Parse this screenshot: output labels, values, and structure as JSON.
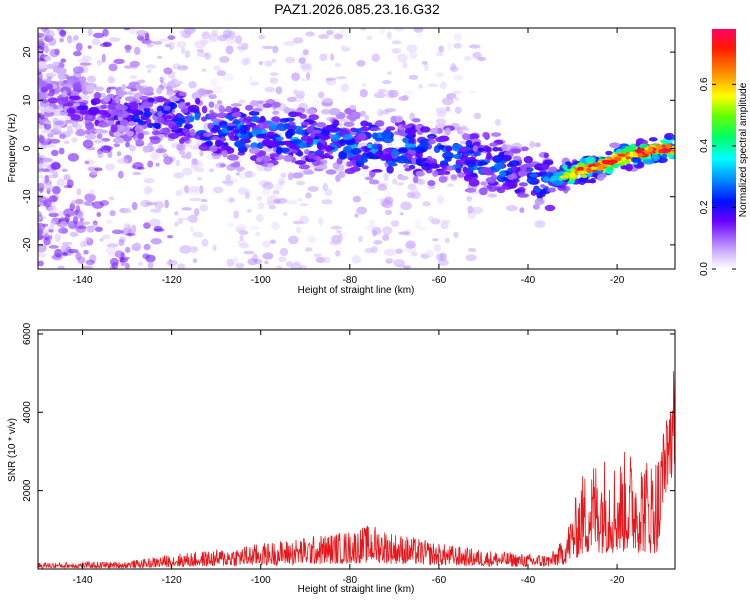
{
  "title": "PAZ1.2026.085.23.16.G32",
  "chart_data": [
    {
      "type": "heatmap",
      "xlabel": "Height of straight line (km)",
      "ylabel": "Frequency (Hz)",
      "xlim": [
        -150,
        -7
      ],
      "ylim": [
        -25,
        25
      ],
      "xticks": [
        -140,
        -120,
        -100,
        -80,
        -60,
        -40,
        -20
      ],
      "yticks": [
        -20,
        -10,
        0,
        10,
        20
      ],
      "colorbar": {
        "label": "Normalized spectral amplitude",
        "range": [
          0,
          0.78
        ],
        "ticks": [
          0.0,
          0.2,
          0.4,
          0.6
        ]
      },
      "ridge": {
        "description": "frequency of peak amplitude vs height",
        "x": [
          -150,
          -140,
          -130,
          -120,
          -110,
          -100,
          -90,
          -80,
          -70,
          -60,
          -50,
          -40,
          -35,
          -30,
          -25,
          -20,
          -15,
          -10,
          -7
        ],
        "y": [
          12,
          9,
          7,
          7,
          4,
          3,
          2,
          1,
          0,
          -1,
          -3,
          -6,
          -7,
          -5,
          -4,
          -2,
          -1,
          0,
          0
        ],
        "peak_amplitude": [
          0.12,
          0.18,
          0.2,
          0.25,
          0.3,
          0.32,
          0.3,
          0.33,
          0.32,
          0.28,
          0.3,
          0.26,
          0.35,
          0.7,
          0.72,
          0.7,
          0.72,
          0.75,
          0.75
        ]
      }
    },
    {
      "type": "line",
      "xlabel": "Height of straight line (km)",
      "ylabel": "SNR (10 * v/v)",
      "xlim": [
        -150,
        -7
      ],
      "ylim": [
        0,
        6100
      ],
      "xticks": [
        -140,
        -120,
        -100,
        -80,
        -60,
        -40,
        -20
      ],
      "yticks": [
        2000,
        4000,
        6000
      ],
      "color": "#e8161a",
      "envelope": {
        "x": [
          -150,
          -130,
          -125,
          -120,
          -110,
          -100,
          -90,
          -80,
          -75,
          -70,
          -60,
          -50,
          -40,
          -35,
          -32,
          -30,
          -28,
          -25,
          -22,
          -20,
          -18,
          -15,
          -12,
          -10,
          -8,
          -7
        ],
        "y": [
          150,
          180,
          250,
          350,
          450,
          600,
          750,
          900,
          1050,
          850,
          600,
          450,
          350,
          350,
          700,
          1400,
          2200,
          2600,
          2700,
          2500,
          2800,
          2700,
          2600,
          2900,
          3800,
          5000
        ]
      }
    }
  ]
}
